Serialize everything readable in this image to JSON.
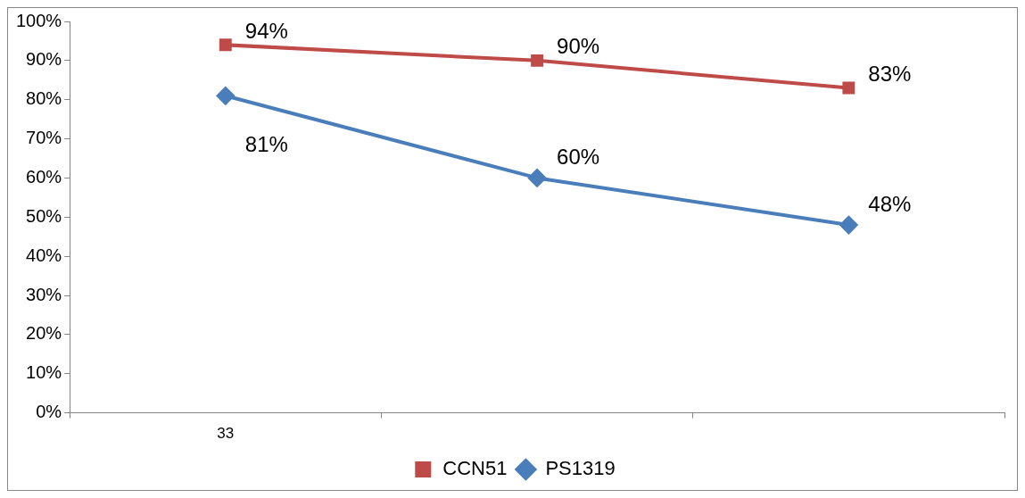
{
  "chart_data": {
    "type": "line",
    "categories": [
      "33",
      null,
      null
    ],
    "series": [
      {
        "name": "PS1319",
        "color": "#4a7ebb",
        "marker": "diamond",
        "values": [
          81,
          60,
          48
        ],
        "value_labels": [
          "81%",
          "60%",
          "48%"
        ]
      },
      {
        "name": "CCN51",
        "color": "#be4b48",
        "marker": "square",
        "values": [
          94,
          90,
          83
        ],
        "value_labels": [
          "94%",
          "90%",
          "83%"
        ]
      }
    ],
    "ylim": [
      0,
      100
    ],
    "yticks": [
      {
        "value": 0,
        "label": "0%"
      },
      {
        "value": 10,
        "label": "10%"
      },
      {
        "value": 20,
        "label": "20%"
      },
      {
        "value": 30,
        "label": "30%"
      },
      {
        "value": 40,
        "label": "40%"
      },
      {
        "value": 50,
        "label": "50%"
      },
      {
        "value": 60,
        "label": "60%"
      },
      {
        "value": 70,
        "label": "70%"
      },
      {
        "value": 80,
        "label": "80%"
      },
      {
        "value": 90,
        "label": "90%"
      },
      {
        "value": 100,
        "label": "100%"
      }
    ],
    "grid": false,
    "legend": "bottom",
    "line_style": "solid"
  }
}
